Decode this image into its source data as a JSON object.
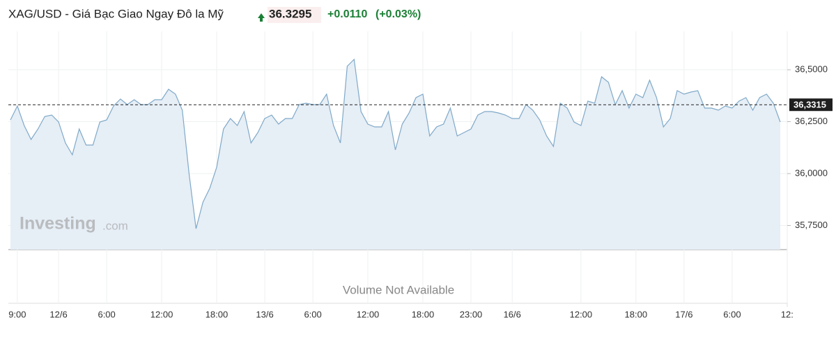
{
  "header": {
    "title": "XAG/USD - Giá Bạc Giao Ngay Đô la Mỹ",
    "price": "36.3295",
    "change": "+0.0110",
    "change_pct": "(+0.03%)"
  },
  "chart_data": {
    "type": "area",
    "categories": [
      null,
      "9:00",
      null,
      null,
      null,
      null,
      null,
      "12/6",
      null,
      null,
      null,
      null,
      null,
      null,
      "6:00",
      null,
      null,
      null,
      null,
      null,
      null,
      null,
      "12:00",
      null,
      null,
      null,
      null,
      null,
      null,
      null,
      "18:00",
      null,
      null,
      null,
      null,
      null,
      null,
      "13/6",
      null,
      null,
      null,
      null,
      null,
      null,
      "6:00",
      null,
      null,
      null,
      null,
      null,
      null,
      null,
      "12:00",
      null,
      null,
      null,
      null,
      null,
      null,
      null,
      "18:00",
      null,
      null,
      null,
      null,
      null,
      null,
      "23:00",
      null,
      null,
      null,
      null,
      null,
      "16/6",
      null,
      null,
      null,
      null,
      null,
      null,
      null,
      null,
      null,
      "12:00",
      null,
      null,
      null,
      null,
      null,
      null,
      null,
      "18:00",
      null,
      null,
      null,
      null,
      null,
      null,
      "17/6",
      null,
      null,
      null,
      null,
      null,
      null,
      "6:00",
      null,
      null,
      null,
      null,
      null,
      null,
      null,
      "12:"
    ],
    "series": [
      {
        "color": "#7fa9c8",
        "values": [
          36.2584,
          36.3255,
          36.2315,
          36.1644,
          36.2147,
          36.2752,
          36.2819,
          36.2483,
          36.1476,
          36.0906,
          36.2147,
          36.1376,
          36.1376,
          36.2483,
          36.2584,
          36.3255,
          36.3591,
          36.3322,
          36.3557,
          36.3322,
          36.3322,
          36.3557,
          36.3557,
          36.406,
          36.3825,
          36.3054,
          35.9966,
          35.7348,
          35.8624,
          35.9295,
          36.0302,
          36.2147,
          36.2651,
          36.2315,
          36.2986,
          36.1476,
          36.198,
          36.2651,
          36.2819,
          36.2382,
          36.2651,
          36.2651,
          36.3322,
          36.3389,
          36.3322,
          36.3322,
          36.3825,
          36.2315,
          36.1476,
          36.5168,
          36.5503,
          36.2986,
          36.2382,
          36.2248,
          36.2248,
          36.2986,
          36.1141,
          36.2382,
          36.2919,
          36.3658,
          36.3825,
          36.1812,
          36.2248,
          36.2382,
          36.3154,
          36.1812,
          36.198,
          36.2147,
          36.2819,
          36.2986,
          36.2986,
          36.2919,
          36.2819,
          36.2651,
          36.2651,
          36.3322,
          36.3054,
          36.2584,
          36.1812,
          36.1308,
          36.3389,
          36.3154,
          36.2483,
          36.2315,
          36.349,
          36.3389,
          36.4664,
          36.4396,
          36.3322,
          36.3993,
          36.3154,
          36.3825,
          36.3658,
          36.4497,
          36.3658,
          36.2248,
          36.2651,
          36.3993,
          36.3825,
          36.3926,
          36.3993,
          36.3154,
          36.3154,
          36.3054,
          36.3255,
          36.3154,
          36.349,
          36.3658,
          36.3054,
          36.3658,
          36.3825,
          36.3389,
          36.2483,
          null
        ]
      }
    ],
    "ylim": [
      35.634,
      36.668
    ],
    "yticks": [
      {
        "value": 35.75,
        "label": "35,7500"
      },
      {
        "value": 36,
        "label": "36,0000"
      },
      {
        "value": 36.25,
        "label": "36,2500"
      },
      {
        "value": 36.5,
        "label": "36,5000"
      }
    ],
    "current_price": {
      "value": 36.3315,
      "label": "36,3315"
    },
    "grid": true,
    "watermark": "Investing",
    "watermark_suffix": ".com",
    "volume_note": "Volume Not Available"
  }
}
